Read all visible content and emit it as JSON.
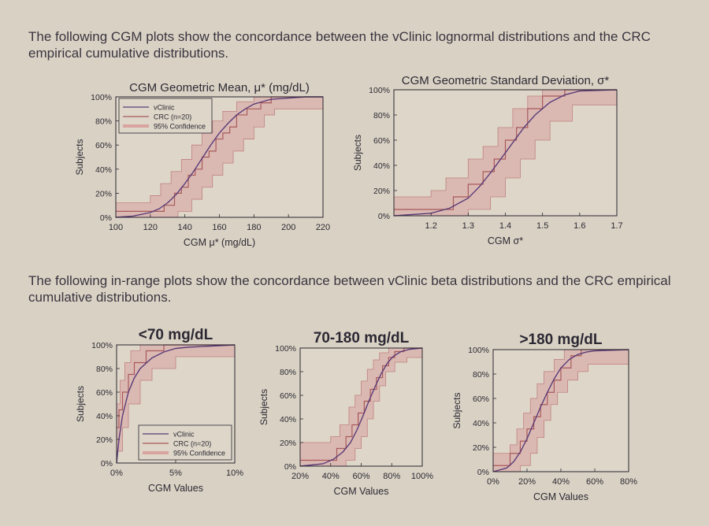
{
  "paragraphs": {
    "p1": "The following CGM plots show the concordance between the vClinic lognormal distributions and the CRC empirical cumulative distributions.",
    "p2": "The following in-range plots show the concordance between vClinic beta distributions and the CRC empirical cumulative distributions."
  },
  "colors": {
    "model_line": "#5a3c78",
    "empirical_line": "#a85a5a",
    "confidence_band": "#d9a3a0",
    "confidence_edge": "#c0807e"
  },
  "chart_data": [
    {
      "id": "geo-mean",
      "type": "line",
      "title": "CGM Geometric Mean, μ* (mg/dL)",
      "xlabel": "CGM μ* (mg/dL)",
      "ylabel": "Subjects",
      "xlim": [
        100,
        220
      ],
      "ylim": [
        0,
        100
      ],
      "xticks": [
        100,
        120,
        140,
        160,
        180,
        200,
        220
      ],
      "xtick_labels": [
        "100",
        "120",
        "140",
        "160",
        "180",
        "200",
        "220"
      ],
      "yticks": [
        0,
        20,
        40,
        60,
        80,
        100
      ],
      "ytick_labels": [
        "0%",
        "20%",
        "40%",
        "60%",
        "80%",
        "100%"
      ],
      "legend": [
        "vClinic",
        "CRC (n=20)",
        "95% Confidence"
      ],
      "legend_position": "top-left",
      "model_curve": {
        "x": [
          100,
          110,
          120,
          125,
          130,
          135,
          140,
          145,
          150,
          155,
          160,
          165,
          170,
          175,
          180,
          185,
          190,
          200,
          210,
          220
        ],
        "y": [
          0,
          1,
          4,
          7,
          12,
          19,
          28,
          38,
          49,
          60,
          70,
          78,
          85,
          90,
          94,
          96,
          98,
          99,
          100,
          100
        ]
      },
      "empirical_steps": {
        "x": [
          100,
          128,
          134,
          138,
          142,
          146,
          150,
          154,
          158,
          162,
          166,
          170,
          176,
          184,
          190,
          220
        ],
        "y": [
          5,
          10,
          20,
          25,
          35,
          40,
          50,
          55,
          65,
          70,
          75,
          85,
          90,
          95,
          100,
          100
        ]
      },
      "band_lower": {
        "x": [
          100,
          136,
          144,
          150,
          156,
          162,
          168,
          174,
          180,
          186,
          192,
          220
        ],
        "y": [
          0,
          5,
          15,
          25,
          35,
          45,
          55,
          65,
          75,
          85,
          90,
          92
        ]
      },
      "band_upper": {
        "x": [
          100,
          120,
          126,
          132,
          138,
          144,
          150,
          156,
          162,
          170,
          180,
          220
        ],
        "y": [
          12,
          18,
          28,
          38,
          48,
          60,
          70,
          80,
          88,
          96,
          100,
          100
        ]
      }
    },
    {
      "id": "geo-sd",
      "type": "line",
      "title": "CGM Geometric Standard Deviation, σ*",
      "xlabel": "CGM σ*",
      "ylabel": "Subjects",
      "xlim": [
        1.1,
        1.7
      ],
      "ylim": [
        0,
        100
      ],
      "xticks": [
        1.2,
        1.3,
        1.4,
        1.5,
        1.6,
        1.7
      ],
      "xtick_labels": [
        "1.2",
        "1.3",
        "1.4",
        "1.5",
        "1.6",
        "1.7"
      ],
      "yticks": [
        0,
        20,
        40,
        60,
        80,
        100
      ],
      "ytick_labels": [
        "0%",
        "20%",
        "40%",
        "60%",
        "80%",
        "100%"
      ],
      "model_curve": {
        "x": [
          1.1,
          1.2,
          1.25,
          1.3,
          1.33,
          1.36,
          1.39,
          1.42,
          1.45,
          1.48,
          1.52,
          1.56,
          1.6,
          1.7
        ],
        "y": [
          0,
          2,
          6,
          14,
          23,
          34,
          46,
          58,
          70,
          80,
          90,
          96,
          99,
          100
        ]
      },
      "empirical_steps": {
        "x": [
          1.1,
          1.26,
          1.3,
          1.34,
          1.37,
          1.4,
          1.43,
          1.46,
          1.5,
          1.56,
          1.7
        ],
        "y": [
          5,
          15,
          25,
          35,
          45,
          60,
          70,
          85,
          95,
          100,
          100
        ]
      },
      "band_lower": {
        "x": [
          1.1,
          1.3,
          1.36,
          1.4,
          1.44,
          1.48,
          1.52,
          1.58,
          1.7
        ],
        "y": [
          0,
          5,
          15,
          30,
          45,
          60,
          75,
          88,
          92
        ]
      },
      "band_upper": {
        "x": [
          1.1,
          1.2,
          1.24,
          1.3,
          1.34,
          1.38,
          1.42,
          1.46,
          1.5,
          1.7
        ],
        "y": [
          15,
          20,
          30,
          45,
          55,
          70,
          85,
          95,
          100,
          100
        ]
      }
    },
    {
      "id": "lt70",
      "type": "line",
      "title": "<70 mg/dL",
      "xlabel": "CGM Values",
      "ylabel": "Subjects",
      "xlim": [
        0,
        10
      ],
      "ylim": [
        0,
        100
      ],
      "xticks": [
        0,
        5,
        10
      ],
      "xtick_labels": [
        "0%",
        "5%",
        "10%"
      ],
      "yticks": [
        0,
        20,
        40,
        60,
        80,
        100
      ],
      "ytick_labels": [
        "0%",
        "20%",
        "40%",
        "60%",
        "80%",
        "100%"
      ],
      "legend": [
        "vClinic",
        "CRC (n=20)",
        "95% Confidence"
      ],
      "legend_position": "bottom-right",
      "model_curve": {
        "x": [
          0,
          0.2,
          0.5,
          1,
          1.5,
          2,
          3,
          4,
          5,
          6,
          8,
          10
        ],
        "y": [
          0,
          20,
          40,
          60,
          72,
          80,
          89,
          94,
          97,
          98,
          99,
          100
        ]
      },
      "empirical_steps": {
        "x": [
          0,
          0.2,
          0.5,
          1,
          1.5,
          2.5,
          4,
          10
        ],
        "y": [
          30,
          45,
          60,
          75,
          85,
          95,
          100,
          100
        ]
      },
      "band_lower": {
        "x": [
          0,
          0.5,
          1,
          2,
          3,
          5,
          10
        ],
        "y": [
          10,
          30,
          50,
          70,
          80,
          90,
          90
        ]
      },
      "band_upper": {
        "x": [
          0,
          0.3,
          0.7,
          1.2,
          2,
          10
        ],
        "y": [
          50,
          70,
          85,
          95,
          100,
          100
        ]
      }
    },
    {
      "id": "70-180",
      "type": "line",
      "title": "70-180 mg/dL",
      "xlabel": "CGM Values",
      "ylabel": "Subjects",
      "xlim": [
        20,
        100
      ],
      "ylim": [
        0,
        100
      ],
      "xticks": [
        20,
        40,
        60,
        80,
        100
      ],
      "xtick_labels": [
        "20%",
        "40%",
        "60%",
        "80%",
        "100%"
      ],
      "yticks": [
        0,
        20,
        40,
        60,
        80,
        100
      ],
      "ytick_labels": [
        "0%",
        "20%",
        "40%",
        "60%",
        "80%",
        "100%"
      ],
      "model_curve": {
        "x": [
          20,
          35,
          42,
          48,
          53,
          57,
          61,
          65,
          69,
          73,
          77,
          81,
          86,
          92,
          100
        ],
        "y": [
          0,
          2,
          6,
          12,
          20,
          30,
          42,
          55,
          67,
          78,
          87,
          93,
          97,
          99,
          100
        ]
      },
      "empirical_steps": {
        "x": [
          20,
          44,
          50,
          54,
          58,
          62,
          66,
          70,
          74,
          78,
          82,
          88,
          100
        ],
        "y": [
          5,
          15,
          25,
          35,
          45,
          55,
          65,
          75,
          85,
          92,
          97,
          100,
          100
        ]
      },
      "band_lower": {
        "x": [
          20,
          50,
          56,
          60,
          64,
          68,
          72,
          76,
          82,
          90,
          100
        ],
        "y": [
          0,
          5,
          15,
          25,
          40,
          55,
          68,
          80,
          88,
          92,
          92
        ]
      },
      "band_upper": {
        "x": [
          20,
          40,
          46,
          52,
          56,
          60,
          64,
          68,
          72,
          78,
          100
        ],
        "y": [
          20,
          25,
          35,
          50,
          60,
          72,
          82,
          90,
          96,
          100,
          100
        ]
      }
    },
    {
      "id": "gt180",
      "type": "line",
      "title": ">180 mg/dL",
      "xlabel": "CGM Values",
      "ylabel": "Subjects",
      "xlim": [
        0,
        80
      ],
      "ylim": [
        0,
        100
      ],
      "xticks": [
        0,
        20,
        40,
        60,
        80
      ],
      "xtick_labels": [
        "0%",
        "20%",
        "40%",
        "60%",
        "80%"
      ],
      "yticks": [
        0,
        20,
        40,
        60,
        80,
        100
      ],
      "ytick_labels": [
        "0%",
        "20%",
        "40%",
        "60%",
        "80%",
        "100%"
      ],
      "model_curve": {
        "x": [
          0,
          8,
          12,
          16,
          20,
          24,
          28,
          32,
          36,
          40,
          45,
          50,
          55,
          60,
          80
        ],
        "y": [
          0,
          3,
          8,
          16,
          27,
          40,
          53,
          65,
          76,
          85,
          92,
          96,
          98,
          99,
          100
        ]
      },
      "empirical_steps": {
        "x": [
          0,
          10,
          16,
          20,
          24,
          28,
          32,
          36,
          40,
          46,
          52,
          80
        ],
        "y": [
          5,
          15,
          25,
          35,
          45,
          55,
          65,
          75,
          85,
          95,
          100,
          100
        ]
      },
      "band_lower": {
        "x": [
          0,
          16,
          22,
          26,
          30,
          34,
          38,
          44,
          50,
          56,
          80
        ],
        "y": [
          0,
          5,
          15,
          28,
          42,
          55,
          65,
          75,
          82,
          88,
          88
        ]
      },
      "band_upper": {
        "x": [
          0,
          10,
          14,
          18,
          22,
          26,
          30,
          36,
          42,
          80
        ],
        "y": [
          15,
          22,
          35,
          48,
          60,
          72,
          82,
          92,
          100,
          100
        ]
      }
    }
  ]
}
